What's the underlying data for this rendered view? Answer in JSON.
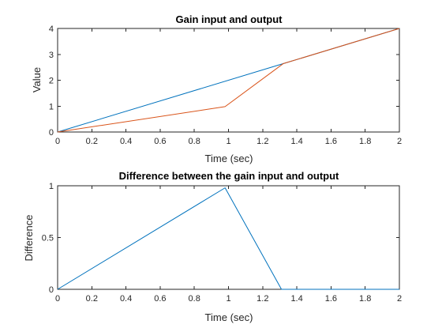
{
  "chart_data": [
    {
      "type": "line",
      "title": "Gain input and output",
      "xlabel": "Time (sec)",
      "ylabel": "Value",
      "xlim": [
        0,
        2
      ],
      "ylim": [
        0,
        4
      ],
      "xticks": [
        "0",
        "0.2",
        "0.4",
        "0.6",
        "0.8",
        "1",
        "1.2",
        "1.4",
        "1.6",
        "1.8",
        "2"
      ],
      "yticks": [
        "0",
        "1",
        "2",
        "3",
        "4"
      ],
      "grid": false,
      "series": [
        {
          "color": "#0072BD",
          "x": [
            0,
            1.32,
            2
          ],
          "y": [
            0,
            2.64,
            4
          ]
        },
        {
          "color": "#D95319",
          "x": [
            0,
            0.98,
            1.32,
            2
          ],
          "y": [
            0,
            0.98,
            2.64,
            4
          ]
        }
      ]
    },
    {
      "type": "line",
      "title": "Difference between the gain input and output",
      "xlabel": "Time (sec)",
      "ylabel": "Difference",
      "xlim": [
        0,
        2
      ],
      "ylim": [
        0,
        1
      ],
      "xticks": [
        "0",
        "0.2",
        "0.4",
        "0.6",
        "0.8",
        "1",
        "1.2",
        "1.4",
        "1.6",
        "1.8",
        "2"
      ],
      "yticks": [
        "0",
        "0.5",
        "1"
      ],
      "grid": false,
      "series": [
        {
          "color": "#0072BD",
          "x": [
            0,
            0.98,
            1.31,
            2
          ],
          "y": [
            0,
            0.98,
            0,
            0
          ]
        }
      ]
    }
  ]
}
